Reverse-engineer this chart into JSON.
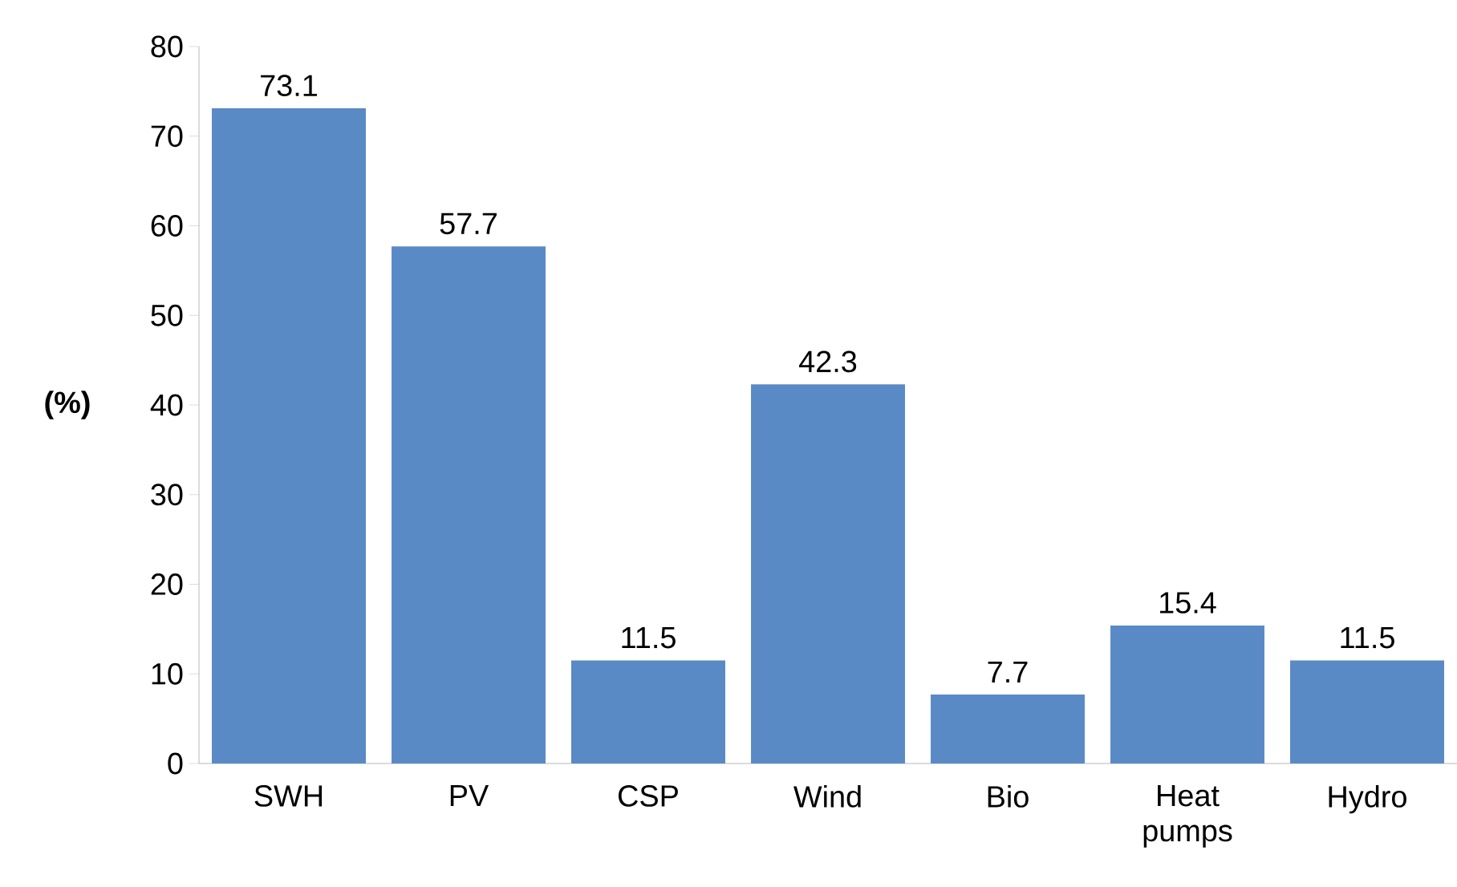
{
  "chart_data": {
    "type": "bar",
    "ylabel": "(%)",
    "categories": [
      "SWH",
      "PV",
      "CSP",
      "Wind",
      "Bio",
      "Heat pumps",
      "Hydro"
    ],
    "values": [
      73.1,
      57.7,
      11.5,
      42.3,
      7.7,
      15.4,
      11.5
    ],
    "color": "#5a8ac6",
    "ylim": [
      0,
      80
    ],
    "yticks": [
      0,
      10,
      20,
      30,
      40,
      50,
      60,
      70,
      80
    ],
    "grid": false,
    "data_labels": true
  }
}
